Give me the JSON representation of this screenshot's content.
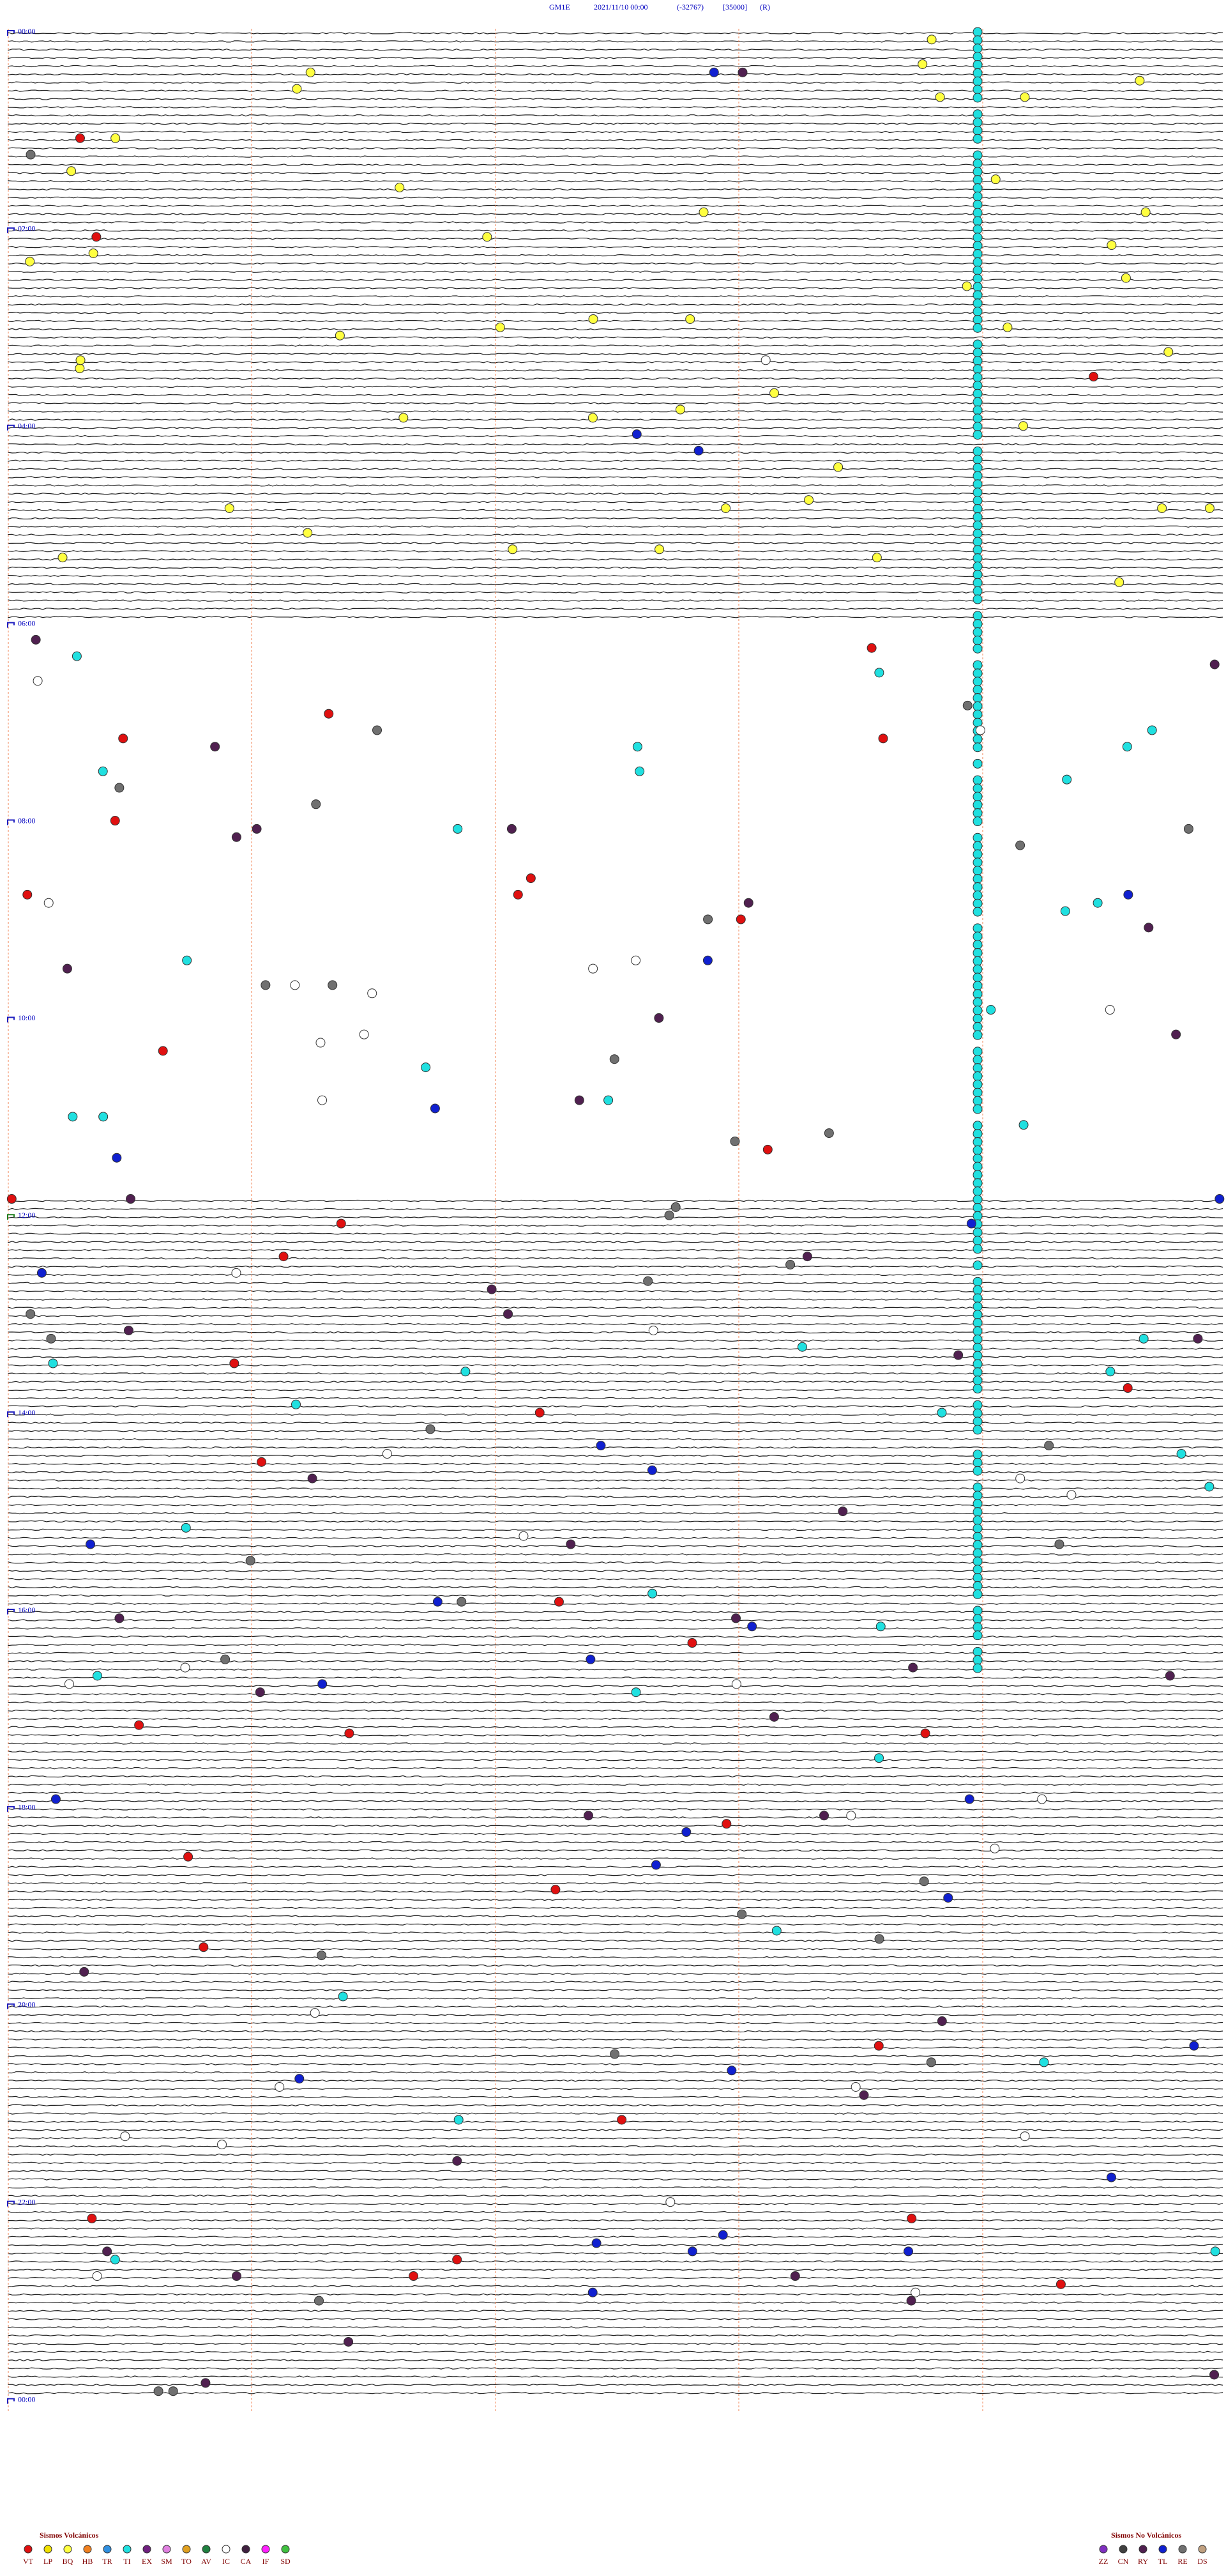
{
  "header": {
    "station": "GM1E",
    "datetime": "2021/11/10 00:00",
    "offset": "(-32767)",
    "scale": "[35000]",
    "mode": "(R)"
  },
  "hour_labels": [
    "00:00",
    "02:00",
    "04:00",
    "06:00",
    "08:00",
    "10:00",
    "12:00",
    "14:00",
    "16:00",
    "18:00",
    "20:00",
    "22:00",
    "00:00"
  ],
  "legend": {
    "volcanic": {
      "title": "Sismos Volcánicos",
      "items": [
        {
          "code": "VT",
          "color": "#e01010"
        },
        {
          "code": "LP",
          "color": "#f0e000"
        },
        {
          "code": "BQ",
          "color": "#ffff40"
        },
        {
          "code": "HB",
          "color": "#f08020"
        },
        {
          "code": "TR",
          "color": "#3090e0"
        },
        {
          "code": "TI",
          "color": "#20e0e0"
        },
        {
          "code": "EX",
          "color": "#702080"
        },
        {
          "code": "SM",
          "color": "#e080e0"
        },
        {
          "code": "TO",
          "color": "#e0a020"
        },
        {
          "code": "AV",
          "color": "#208040"
        },
        {
          "code": "IC",
          "color": "#ffffff"
        },
        {
          "code": "CA",
          "color": "#402040"
        },
        {
          "code": "IF",
          "color": "#ff20ff"
        },
        {
          "code": "SD",
          "color": "#40c040"
        }
      ]
    },
    "non_volcanic": {
      "title": "Sismos No Volcánicos",
      "items": [
        {
          "code": "ZZ",
          "color": "#8030c0"
        },
        {
          "code": "CN",
          "color": "#404040"
        },
        {
          "code": "RY",
          "color": "#502050"
        },
        {
          "code": "TL",
          "color": "#1020d0"
        },
        {
          "code": "RE",
          "color": "#707070"
        },
        {
          "code": "DS",
          "color": "#c0a080"
        }
      ]
    }
  }
}
